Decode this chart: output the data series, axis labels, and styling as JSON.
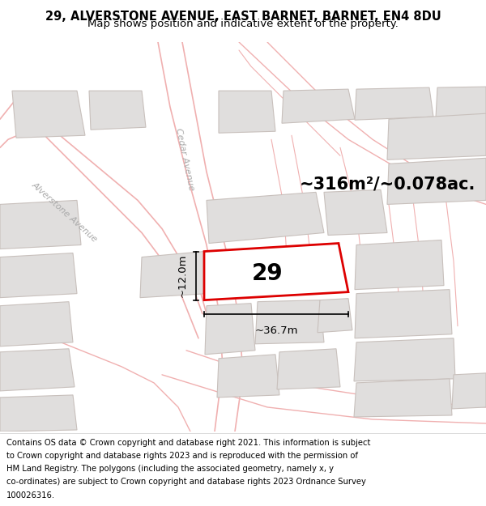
{
  "title_line1": "29, ALVERSTONE AVENUE, EAST BARNET, BARNET, EN4 8DU",
  "title_line2": "Map shows position and indicative extent of the property.",
  "footer_lines": [
    "Contains OS data © Crown copyright and database right 2021. This information is subject",
    "to Crown copyright and database rights 2023 and is reproduced with the permission of",
    "HM Land Registry. The polygons (including the associated geometry, namely x, y",
    "co-ordinates) are subject to Crown copyright and database rights 2023 Ordnance Survey",
    "100026316."
  ],
  "map_bg_color": "#f8f6f4",
  "building_fill": "#e0dedd",
  "building_edge": "#e0dedd",
  "road_outline_color": "#f0b0b0",
  "highlighted_fill": "#ffffff",
  "highlighted_edge": "#dd0000",
  "area_label": "~316m²/~0.078ac.",
  "property_number": "29",
  "dim_width": "~36.7m",
  "dim_height": "~12.0m",
  "title_fontsize": 10.5,
  "subtitle_fontsize": 9.5,
  "footer_fontsize": 7.2,
  "label_fontsize": 15,
  "number_fontsize": 20,
  "dim_fontsize": 9.5,
  "street_label_color": "#aaaaaa",
  "street_label_fontsize": 8
}
